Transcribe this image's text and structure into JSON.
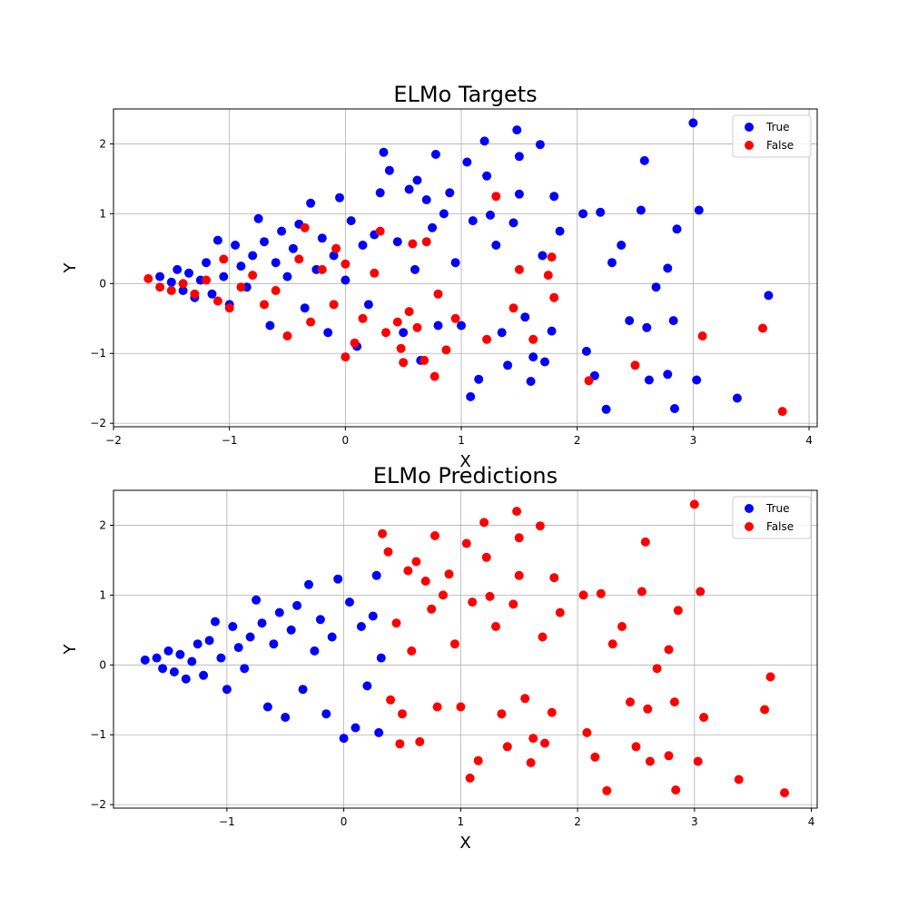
{
  "chart_data": [
    {
      "type": "scatter",
      "title": "ELMo Targets",
      "xlabel": "X",
      "ylabel": "Y",
      "xlim": [
        -2.0,
        4.07
      ],
      "ylim": [
        -2.05,
        2.5
      ],
      "xticks": [
        -2,
        -1,
        0,
        1,
        2,
        3,
        4
      ],
      "yticks": [
        -2,
        -1,
        0,
        1,
        2
      ],
      "grid": true,
      "legend_position": "top-right",
      "series": [
        {
          "name": "True",
          "color": "#0000ff",
          "points": [
            [
              -1.6,
              0.1
            ],
            [
              -1.5,
              0.02
            ],
            [
              -1.45,
              0.2
            ],
            [
              -1.4,
              -0.1
            ],
            [
              -1.35,
              0.15
            ],
            [
              -1.3,
              -0.2
            ],
            [
              -1.25,
              0.05
            ],
            [
              -1.2,
              0.3
            ],
            [
              -1.15,
              -0.15
            ],
            [
              -1.1,
              0.62
            ],
            [
              -1.05,
              0.1
            ],
            [
              -1.0,
              -0.3
            ],
            [
              -0.95,
              0.55
            ],
            [
              -0.9,
              0.25
            ],
            [
              -0.85,
              -0.05
            ],
            [
              -0.8,
              0.4
            ],
            [
              -0.75,
              0.93
            ],
            [
              -0.7,
              0.6
            ],
            [
              -0.65,
              -0.6
            ],
            [
              -0.6,
              0.3
            ],
            [
              -0.55,
              0.75
            ],
            [
              -0.5,
              0.1
            ],
            [
              -0.45,
              0.5
            ],
            [
              -0.4,
              0.85
            ],
            [
              -0.35,
              -0.35
            ],
            [
              -0.3,
              1.15
            ],
            [
              -0.25,
              0.2
            ],
            [
              -0.2,
              0.65
            ],
            [
              -0.15,
              -0.7
            ],
            [
              -0.1,
              0.4
            ],
            [
              -0.05,
              1.23
            ],
            [
              0.0,
              0.05
            ],
            [
              0.05,
              0.9
            ],
            [
              0.1,
              -0.9
            ],
            [
              0.15,
              0.55
            ],
            [
              0.2,
              -0.3
            ],
            [
              0.25,
              0.7
            ],
            [
              0.3,
              1.3
            ],
            [
              0.33,
              1.88
            ],
            [
              0.38,
              1.62
            ],
            [
              0.45,
              0.6
            ],
            [
              0.5,
              -0.7
            ],
            [
              0.55,
              1.35
            ],
            [
              0.6,
              0.2
            ],
            [
              0.62,
              1.48
            ],
            [
              0.65,
              -1.1
            ],
            [
              0.7,
              1.2
            ],
            [
              0.75,
              0.8
            ],
            [
              0.78,
              1.85
            ],
            [
              0.8,
              -0.6
            ],
            [
              0.85,
              1.0
            ],
            [
              0.9,
              1.3
            ],
            [
              0.95,
              0.3
            ],
            [
              1.0,
              -0.6
            ],
            [
              1.05,
              1.74
            ],
            [
              1.08,
              -1.62
            ],
            [
              1.1,
              0.9
            ],
            [
              1.15,
              -1.37
            ],
            [
              1.2,
              2.04
            ],
            [
              1.22,
              1.54
            ],
            [
              1.25,
              0.98
            ],
            [
              1.3,
              0.55
            ],
            [
              1.35,
              -0.7
            ],
            [
              1.4,
              -1.17
            ],
            [
              1.45,
              0.87
            ],
            [
              1.48,
              2.2
            ],
            [
              1.5,
              1.82
            ],
            [
              1.5,
              1.28
            ],
            [
              1.55,
              -0.48
            ],
            [
              1.6,
              -1.4
            ],
            [
              1.62,
              -1.05
            ],
            [
              1.68,
              1.99
            ],
            [
              1.7,
              0.4
            ],
            [
              1.72,
              -1.12
            ],
            [
              1.78,
              -0.68
            ],
            [
              1.8,
              1.25
            ],
            [
              1.85,
              0.75
            ],
            [
              2.05,
              1.0
            ],
            [
              2.08,
              -0.97
            ],
            [
              2.15,
              -1.32
            ],
            [
              2.2,
              1.02
            ],
            [
              2.25,
              -1.8
            ],
            [
              2.3,
              0.3
            ],
            [
              2.38,
              0.55
            ],
            [
              2.45,
              -0.53
            ],
            [
              2.55,
              1.05
            ],
            [
              2.58,
              1.76
            ],
            [
              2.6,
              -0.63
            ],
            [
              2.62,
              -1.38
            ],
            [
              2.68,
              -0.05
            ],
            [
              2.78,
              0.22
            ],
            [
              2.78,
              -1.3
            ],
            [
              2.83,
              -0.53
            ],
            [
              2.84,
              -1.79
            ],
            [
              2.86,
              0.78
            ],
            [
              3.0,
              2.3
            ],
            [
              3.03,
              -1.38
            ],
            [
              3.05,
              1.05
            ],
            [
              3.38,
              -1.64
            ],
            [
              3.65,
              -0.17
            ]
          ]
        },
        {
          "name": "False",
          "color": "#ff0000",
          "points": [
            [
              -1.7,
              0.07
            ],
            [
              -1.6,
              -0.05
            ],
            [
              -1.5,
              -0.1
            ],
            [
              -1.4,
              0.0
            ],
            [
              -1.3,
              -0.15
            ],
            [
              -1.2,
              0.05
            ],
            [
              -1.1,
              -0.25
            ],
            [
              -1.05,
              0.35
            ],
            [
              -1.0,
              -0.35
            ],
            [
              -0.9,
              -0.05
            ],
            [
              -0.8,
              0.12
            ],
            [
              -0.7,
              -0.3
            ],
            [
              -0.6,
              -0.1
            ],
            [
              -0.5,
              -0.75
            ],
            [
              -0.4,
              0.35
            ],
            [
              -0.35,
              0.8
            ],
            [
              -0.3,
              -0.55
            ],
            [
              -0.2,
              0.2
            ],
            [
              -0.1,
              -0.3
            ],
            [
              -0.08,
              0.5
            ],
            [
              0.0,
              -1.05
            ],
            [
              0.0,
              0.28
            ],
            [
              0.08,
              -0.85
            ],
            [
              0.15,
              -0.5
            ],
            [
              0.25,
              0.15
            ],
            [
              0.3,
              0.75
            ],
            [
              0.35,
              -0.7
            ],
            [
              0.45,
              -0.55
            ],
            [
              0.48,
              -0.93
            ],
            [
              0.5,
              -1.13
            ],
            [
              0.55,
              -0.4
            ],
            [
              0.58,
              0.57
            ],
            [
              0.62,
              -0.63
            ],
            [
              0.68,
              -1.1
            ],
            [
              0.7,
              0.6
            ],
            [
              0.77,
              -1.33
            ],
            [
              0.8,
              -0.15
            ],
            [
              0.87,
              -0.95
            ],
            [
              0.95,
              -0.5
            ],
            [
              1.22,
              -0.8
            ],
            [
              1.3,
              1.25
            ],
            [
              1.45,
              -0.35
            ],
            [
              1.5,
              0.2
            ],
            [
              1.62,
              -0.8
            ],
            [
              1.75,
              0.12
            ],
            [
              1.78,
              0.38
            ],
            [
              1.8,
              -0.2
            ],
            [
              2.1,
              -1.39
            ],
            [
              2.5,
              -1.17
            ],
            [
              3.08,
              -0.75
            ],
            [
              3.6,
              -0.64
            ],
            [
              3.77,
              -1.83
            ]
          ]
        }
      ]
    },
    {
      "type": "scatter",
      "title": "ELMo Predictions",
      "xlabel": "X",
      "ylabel": "Y",
      "xlim": [
        -1.97,
        4.05
      ],
      "ylim": [
        -2.05,
        2.5
      ],
      "xticks": [
        -1,
        0,
        1,
        2,
        3,
        4
      ],
      "yticks": [
        -2,
        -1,
        0,
        1,
        2
      ],
      "grid": true,
      "legend_position": "top-right",
      "series": [
        {
          "name": "True",
          "color": "#0000ff",
          "points": [
            [
              -1.7,
              0.07
            ],
            [
              -1.6,
              0.1
            ],
            [
              -1.55,
              -0.05
            ],
            [
              -1.5,
              0.2
            ],
            [
              -1.45,
              -0.1
            ],
            [
              -1.4,
              0.15
            ],
            [
              -1.35,
              -0.2
            ],
            [
              -1.3,
              0.05
            ],
            [
              -1.25,
              0.3
            ],
            [
              -1.2,
              -0.15
            ],
            [
              -1.15,
              0.35
            ],
            [
              -1.1,
              0.62
            ],
            [
              -1.05,
              0.1
            ],
            [
              -1.0,
              -0.35
            ],
            [
              -0.95,
              0.55
            ],
            [
              -0.9,
              0.25
            ],
            [
              -0.85,
              -0.05
            ],
            [
              -0.8,
              0.4
            ],
            [
              -0.75,
              0.93
            ],
            [
              -0.7,
              0.6
            ],
            [
              -0.65,
              -0.6
            ],
            [
              -0.6,
              0.3
            ],
            [
              -0.55,
              0.75
            ],
            [
              -0.5,
              -0.75
            ],
            [
              -0.45,
              0.5
            ],
            [
              -0.4,
              0.85
            ],
            [
              -0.35,
              -0.35
            ],
            [
              -0.3,
              1.15
            ],
            [
              -0.25,
              0.2
            ],
            [
              -0.2,
              0.65
            ],
            [
              -0.15,
              -0.7
            ],
            [
              -0.1,
              0.4
            ],
            [
              -0.05,
              1.23
            ],
            [
              0.0,
              -1.05
            ],
            [
              0.05,
              0.9
            ],
            [
              0.1,
              -0.9
            ],
            [
              0.15,
              0.55
            ],
            [
              0.2,
              -0.3
            ],
            [
              0.25,
              0.7
            ],
            [
              0.28,
              1.28
            ],
            [
              0.3,
              -0.97
            ],
            [
              0.32,
              0.1
            ]
          ]
        },
        {
          "name": "False",
          "color": "#ff0000",
          "points": [
            [
              0.33,
              1.88
            ],
            [
              0.38,
              1.62
            ],
            [
              0.4,
              -0.5
            ],
            [
              0.45,
              0.6
            ],
            [
              0.48,
              -1.13
            ],
            [
              0.5,
              -0.7
            ],
            [
              0.55,
              1.35
            ],
            [
              0.58,
              0.2
            ],
            [
              0.62,
              1.48
            ],
            [
              0.65,
              -1.1
            ],
            [
              0.7,
              1.2
            ],
            [
              0.75,
              0.8
            ],
            [
              0.78,
              1.85
            ],
            [
              0.8,
              -0.6
            ],
            [
              0.85,
              1.0
            ],
            [
              0.9,
              1.3
            ],
            [
              0.95,
              0.3
            ],
            [
              1.0,
              -0.6
            ],
            [
              1.05,
              1.74
            ],
            [
              1.08,
              -1.62
            ],
            [
              1.1,
              0.9
            ],
            [
              1.15,
              -1.37
            ],
            [
              1.2,
              2.04
            ],
            [
              1.22,
              1.54
            ],
            [
              1.25,
              0.98
            ],
            [
              1.3,
              0.55
            ],
            [
              1.35,
              -0.7
            ],
            [
              1.4,
              -1.17
            ],
            [
              1.45,
              0.87
            ],
            [
              1.48,
              2.2
            ],
            [
              1.5,
              1.82
            ],
            [
              1.5,
              1.28
            ],
            [
              1.55,
              -0.48
            ],
            [
              1.6,
              -1.4
            ],
            [
              1.62,
              -1.05
            ],
            [
              1.68,
              1.99
            ],
            [
              1.7,
              0.4
            ],
            [
              1.72,
              -1.12
            ],
            [
              1.78,
              -0.68
            ],
            [
              1.8,
              1.25
            ],
            [
              1.85,
              0.75
            ],
            [
              2.05,
              1.0
            ],
            [
              2.08,
              -0.97
            ],
            [
              2.15,
              -1.32
            ],
            [
              2.2,
              1.02
            ],
            [
              2.25,
              -1.8
            ],
            [
              2.3,
              0.3
            ],
            [
              2.38,
              0.55
            ],
            [
              2.45,
              -0.53
            ],
            [
              2.5,
              -1.17
            ],
            [
              2.55,
              1.05
            ],
            [
              2.58,
              1.76
            ],
            [
              2.6,
              -0.63
            ],
            [
              2.62,
              -1.38
            ],
            [
              2.68,
              -0.05
            ],
            [
              2.78,
              0.22
            ],
            [
              2.78,
              -1.3
            ],
            [
              2.83,
              -0.53
            ],
            [
              2.84,
              -1.79
            ],
            [
              2.86,
              0.78
            ],
            [
              3.0,
              2.3
            ],
            [
              3.03,
              -1.38
            ],
            [
              3.05,
              1.05
            ],
            [
              3.08,
              -0.75
            ],
            [
              3.38,
              -1.64
            ],
            [
              3.6,
              -0.64
            ],
            [
              3.65,
              -0.17
            ],
            [
              3.77,
              -1.83
            ]
          ]
        }
      ]
    }
  ]
}
